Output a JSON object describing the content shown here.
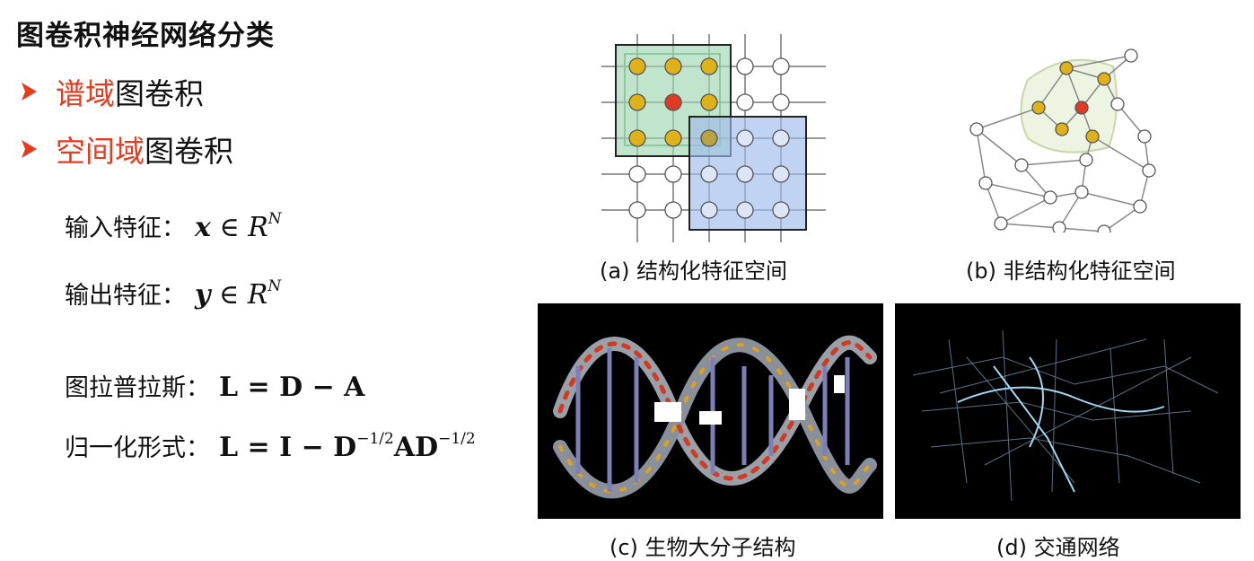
{
  "title": "图卷积神经网络分类",
  "bullets": [
    {
      "highlight": "谱域",
      "rest": "图卷积"
    },
    {
      "highlight": "空间域",
      "rest": "图卷积"
    }
  ],
  "formulas": {
    "input": {
      "label": "输入特征：",
      "var": "x",
      "rel": "∈",
      "space": "R",
      "exp": "N"
    },
    "output": {
      "label": "输出特征：",
      "var": "y",
      "rel": "∈",
      "space": "R",
      "exp": "N"
    },
    "laplacian": {
      "label": "图拉普拉斯：",
      "expr": "L = D − A"
    },
    "normalized": {
      "label": "归一化形式：",
      "lhs": "L = I − D",
      "exp1": "−1/2",
      "mid": "AD",
      "exp2": "−1/2"
    }
  },
  "captions": {
    "a": "(a) 结构化特征空间",
    "b": "(b) 非结构化特征空间",
    "c": "(c) 生物大分子结构",
    "d": "(d) 交通网络"
  },
  "colors": {
    "accent_red": "#e53b1f",
    "node_yellow": "#e0b21a",
    "node_red": "#e03a25",
    "green_box": "#bfe3c8",
    "blue_box": "#b9cdf0"
  }
}
